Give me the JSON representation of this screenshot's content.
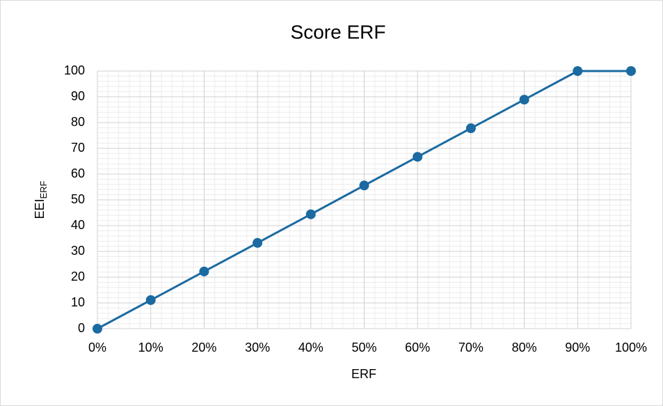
{
  "chart_data": {
    "type": "line",
    "title": "Score ERF",
    "x_label": "ERF",
    "y_label": "EEI",
    "y_label_subscript": "ERF",
    "x": [
      0,
      10,
      20,
      30,
      40,
      50,
      60,
      70,
      80,
      90,
      100
    ],
    "series": [
      {
        "name": "Score",
        "color": "#1b6aa1",
        "values": [
          0,
          11.1,
          22.2,
          33.3,
          44.4,
          55.6,
          66.7,
          77.8,
          88.9,
          100,
          100
        ]
      }
    ],
    "xlim": [
      0,
      100
    ],
    "xticks": [
      {
        "value": 0,
        "label": "0%"
      },
      {
        "value": 10,
        "label": "10%"
      },
      {
        "value": 20,
        "label": "20%"
      },
      {
        "value": 30,
        "label": "30%"
      },
      {
        "value": 40,
        "label": "40%"
      },
      {
        "value": 50,
        "label": "50%"
      },
      {
        "value": 60,
        "label": "60%"
      },
      {
        "value": 70,
        "label": "70%"
      },
      {
        "value": 80,
        "label": "80%"
      },
      {
        "value": 90,
        "label": "90%"
      },
      {
        "value": 100,
        "label": "100%"
      }
    ],
    "ylim": [
      0,
      100
    ],
    "yticks": [
      0,
      10,
      20,
      30,
      40,
      50,
      60,
      70,
      80,
      90,
      100
    ],
    "grid": true,
    "minor_grid": true
  }
}
